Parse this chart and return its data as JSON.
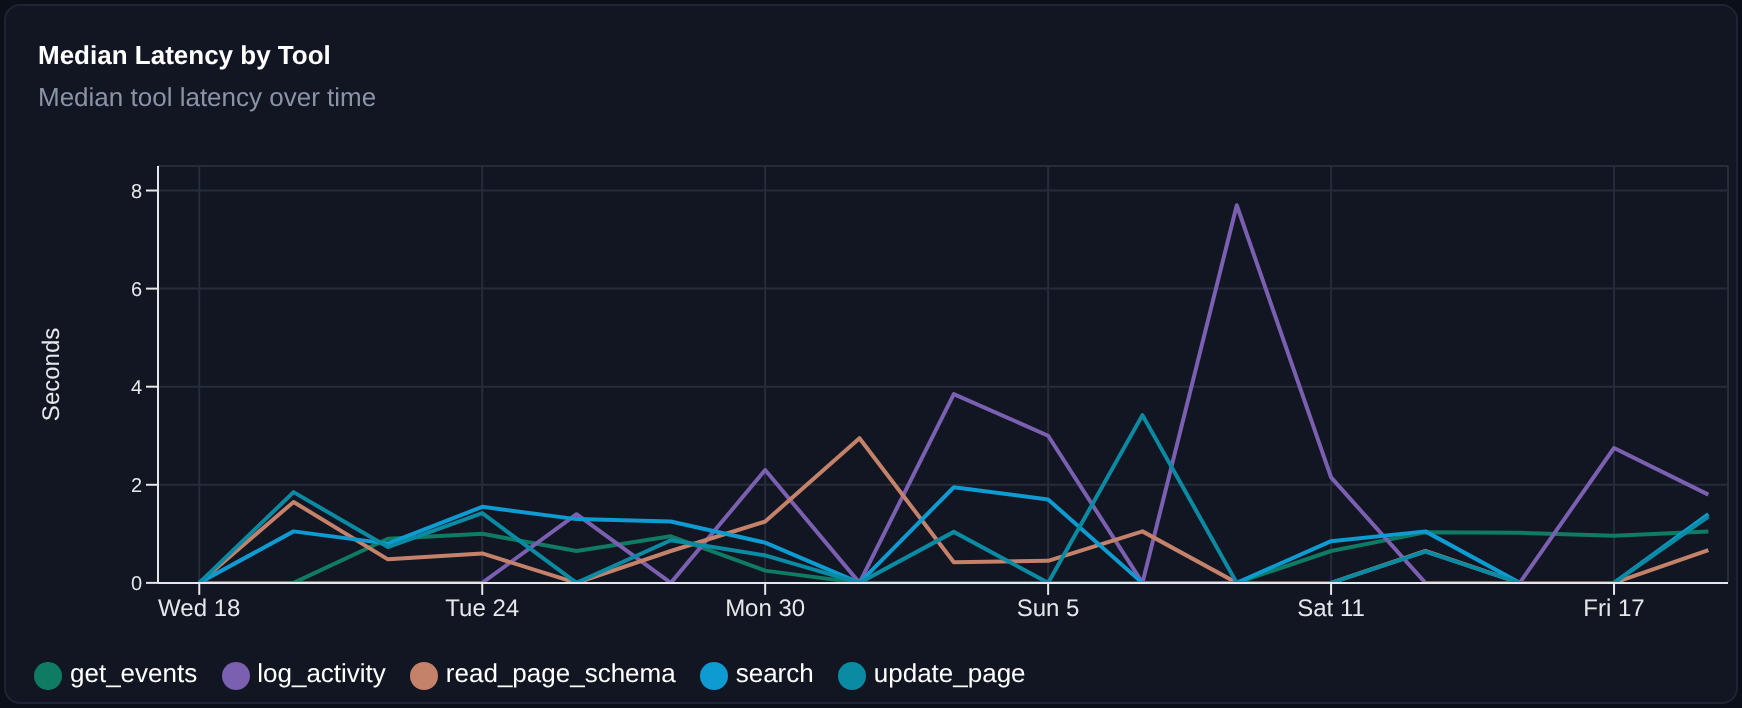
{
  "chart_data": {
    "type": "line",
    "title": "Median Latency by Tool",
    "subtitle": "Median tool latency over time",
    "ylabel": "Seconds",
    "x": [
      "--03-18",
      "--03-20",
      "--03-22",
      "--03-24",
      "--03-26",
      "--03-28",
      "--03-30",
      "--04-01",
      "--04-03",
      "--04-05",
      "--04-07",
      "--04-09",
      "--04-11",
      "--04-13",
      "--04-15",
      "--04-17",
      "--04-19"
    ],
    "series": [
      {
        "name": "get_events",
        "color": "#0f7b63",
        "values": [
          0,
          0,
          0.9,
          1.0,
          0.65,
          0.95,
          0.25,
          0,
          0,
          0,
          0,
          0,
          0.65,
          1.03,
          1.02,
          0.96,
          1.05
        ]
      },
      {
        "name": "log_activity",
        "color": "#7b5fb0",
        "values": [
          0,
          0,
          0,
          0,
          1.4,
          0,
          2.3,
          0,
          3.85,
          3.0,
          0,
          7.7,
          2.15,
          0,
          0,
          2.75,
          1.8
        ]
      },
      {
        "name": "read_page_schema",
        "color": "#c4826a",
        "values": [
          0,
          1.65,
          0.48,
          0.6,
          0,
          0.65,
          1.25,
          2.95,
          0.42,
          0.45,
          1.05,
          0,
          0,
          0.65,
          0,
          0,
          0.67
        ]
      },
      {
        "name": "search",
        "color": "#0e9bd2",
        "values": [
          0,
          1.05,
          0.8,
          1.55,
          1.3,
          1.25,
          0.82,
          0,
          1.95,
          1.7,
          0,
          0,
          0.85,
          1.05,
          0,
          0,
          1.4
        ]
      },
      {
        "name": "update_page",
        "color": "#0b8ba3",
        "values": [
          0,
          1.85,
          0.73,
          1.42,
          0,
          0.87,
          0.56,
          0,
          1.04,
          0,
          3.42,
          0,
          0,
          0.64,
          0,
          0,
          1.35
        ]
      }
    ],
    "xlim": [
      "--03-17T03:00",
      "--04-19T10:00"
    ],
    "xticks": [
      {
        "value": "--03-18",
        "label": "Wed 18"
      },
      {
        "value": "--03-24",
        "label": "Tue 24"
      },
      {
        "value": "--03-30",
        "label": "Mon 30"
      },
      {
        "value": "--04-05",
        "label": "Sun 5"
      },
      {
        "value": "--04-11",
        "label": "Sat 11"
      },
      {
        "value": "--04-17",
        "label": "Fri 17"
      }
    ],
    "ylim": [
      0,
      8.5
    ],
    "yticks": [
      0,
      2,
      4,
      6,
      8
    ],
    "grid": true,
    "legend": "bottom",
    "line_style": "solid"
  }
}
